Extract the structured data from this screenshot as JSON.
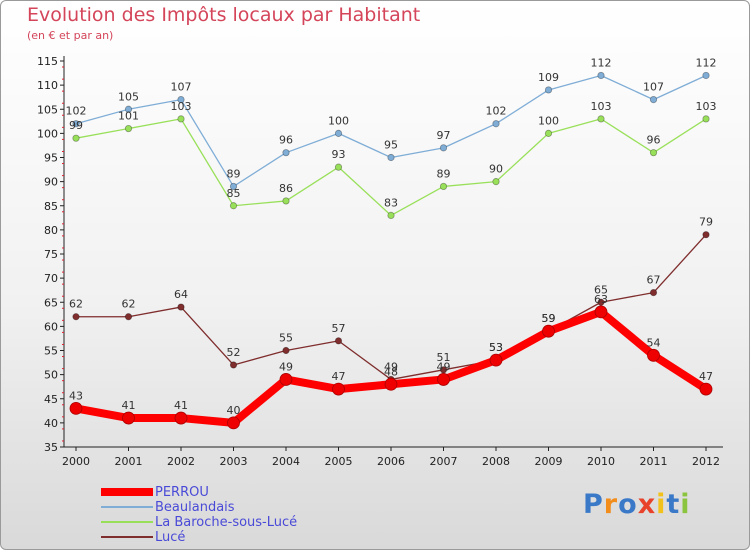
{
  "title": "Evolution des Impôts locaux par Habitant",
  "subtitle": "(en € et par an)",
  "logo_text": "Proxiti",
  "chart_data": {
    "type": "line",
    "title": "Evolution des Impôts locaux par Habitant",
    "subtitle": "(en € et par an)",
    "xlabel": "",
    "ylabel": "",
    "x": [
      "2000",
      "2001",
      "2002",
      "2003",
      "2004",
      "2005",
      "2006",
      "2007",
      "2008",
      "2009",
      "2010",
      "2011",
      "2012"
    ],
    "ylim": [
      35,
      115
    ],
    "yticks": [
      35,
      40,
      45,
      50,
      55,
      60,
      65,
      70,
      75,
      80,
      85,
      90,
      95,
      100,
      105,
      110,
      115
    ],
    "grid": false,
    "legend_position": "bottom-left",
    "series": [
      {
        "name": "PERROU",
        "color": "#ff0000",
        "values": [
          43,
          41,
          41,
          40,
          49,
          47,
          48,
          49,
          53,
          59,
          63,
          54,
          47
        ]
      },
      {
        "name": "Beaulandais",
        "color": "#7fadd6",
        "values": [
          102,
          105,
          107,
          89,
          96,
          100,
          95,
          97,
          102,
          109,
          112,
          107,
          112
        ]
      },
      {
        "name": "La Baroche-sous-Lucé",
        "color": "#99e05a",
        "values": [
          99,
          101,
          103,
          85,
          86,
          93,
          83,
          89,
          90,
          100,
          103,
          96,
          103
        ]
      },
      {
        "name": "Lucé",
        "color": "#7f2d2d",
        "values": [
          62,
          62,
          64,
          52,
          55,
          57,
          49,
          51,
          53,
          59,
          65,
          67,
          79
        ]
      }
    ]
  }
}
